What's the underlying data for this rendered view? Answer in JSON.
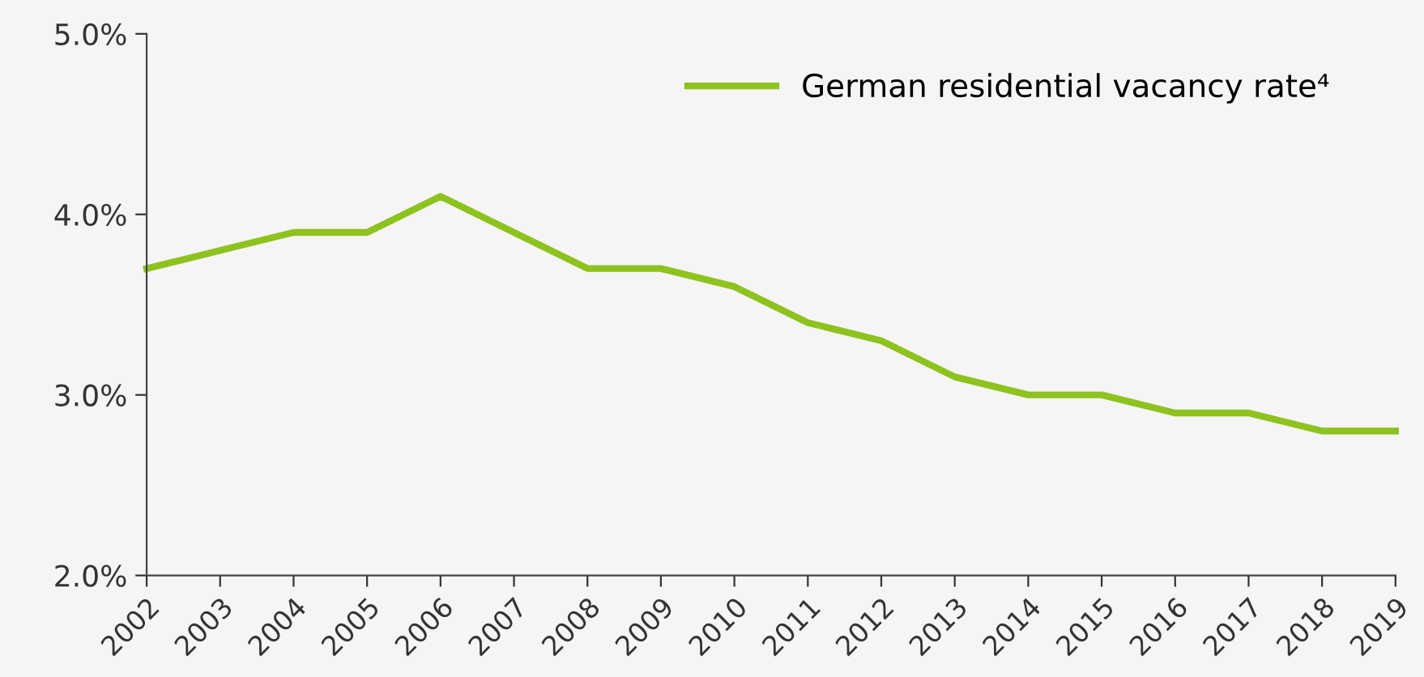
{
  "chart_data": {
    "type": "line",
    "categories": [
      "2002",
      "2003",
      "2004",
      "2005",
      "2006",
      "2007",
      "2008",
      "2009",
      "2010",
      "2011",
      "2012",
      "2013",
      "2014",
      "2015",
      "2016",
      "2017",
      "2018",
      "2019"
    ],
    "series": [
      {
        "name": "German residential vacancy rate⁴",
        "color": "#8dc21f",
        "values": [
          3.7,
          3.8,
          3.9,
          3.9,
          4.1,
          3.9,
          3.7,
          3.7,
          3.6,
          3.4,
          3.3,
          3.1,
          3.0,
          3.0,
          2.9,
          2.9,
          2.8,
          2.8
        ]
      }
    ],
    "ylim": [
      2.0,
      5.0
    ],
    "yticks": [
      {
        "value": 2.0,
        "label": "2.0%"
      },
      {
        "value": 3.0,
        "label": "3.0%"
      },
      {
        "value": 4.0,
        "label": "4.0%"
      },
      {
        "value": 5.0,
        "label": "5.0%"
      }
    ],
    "grid": false,
    "legend": "top right",
    "marker": "none",
    "line_style": "solid"
  }
}
